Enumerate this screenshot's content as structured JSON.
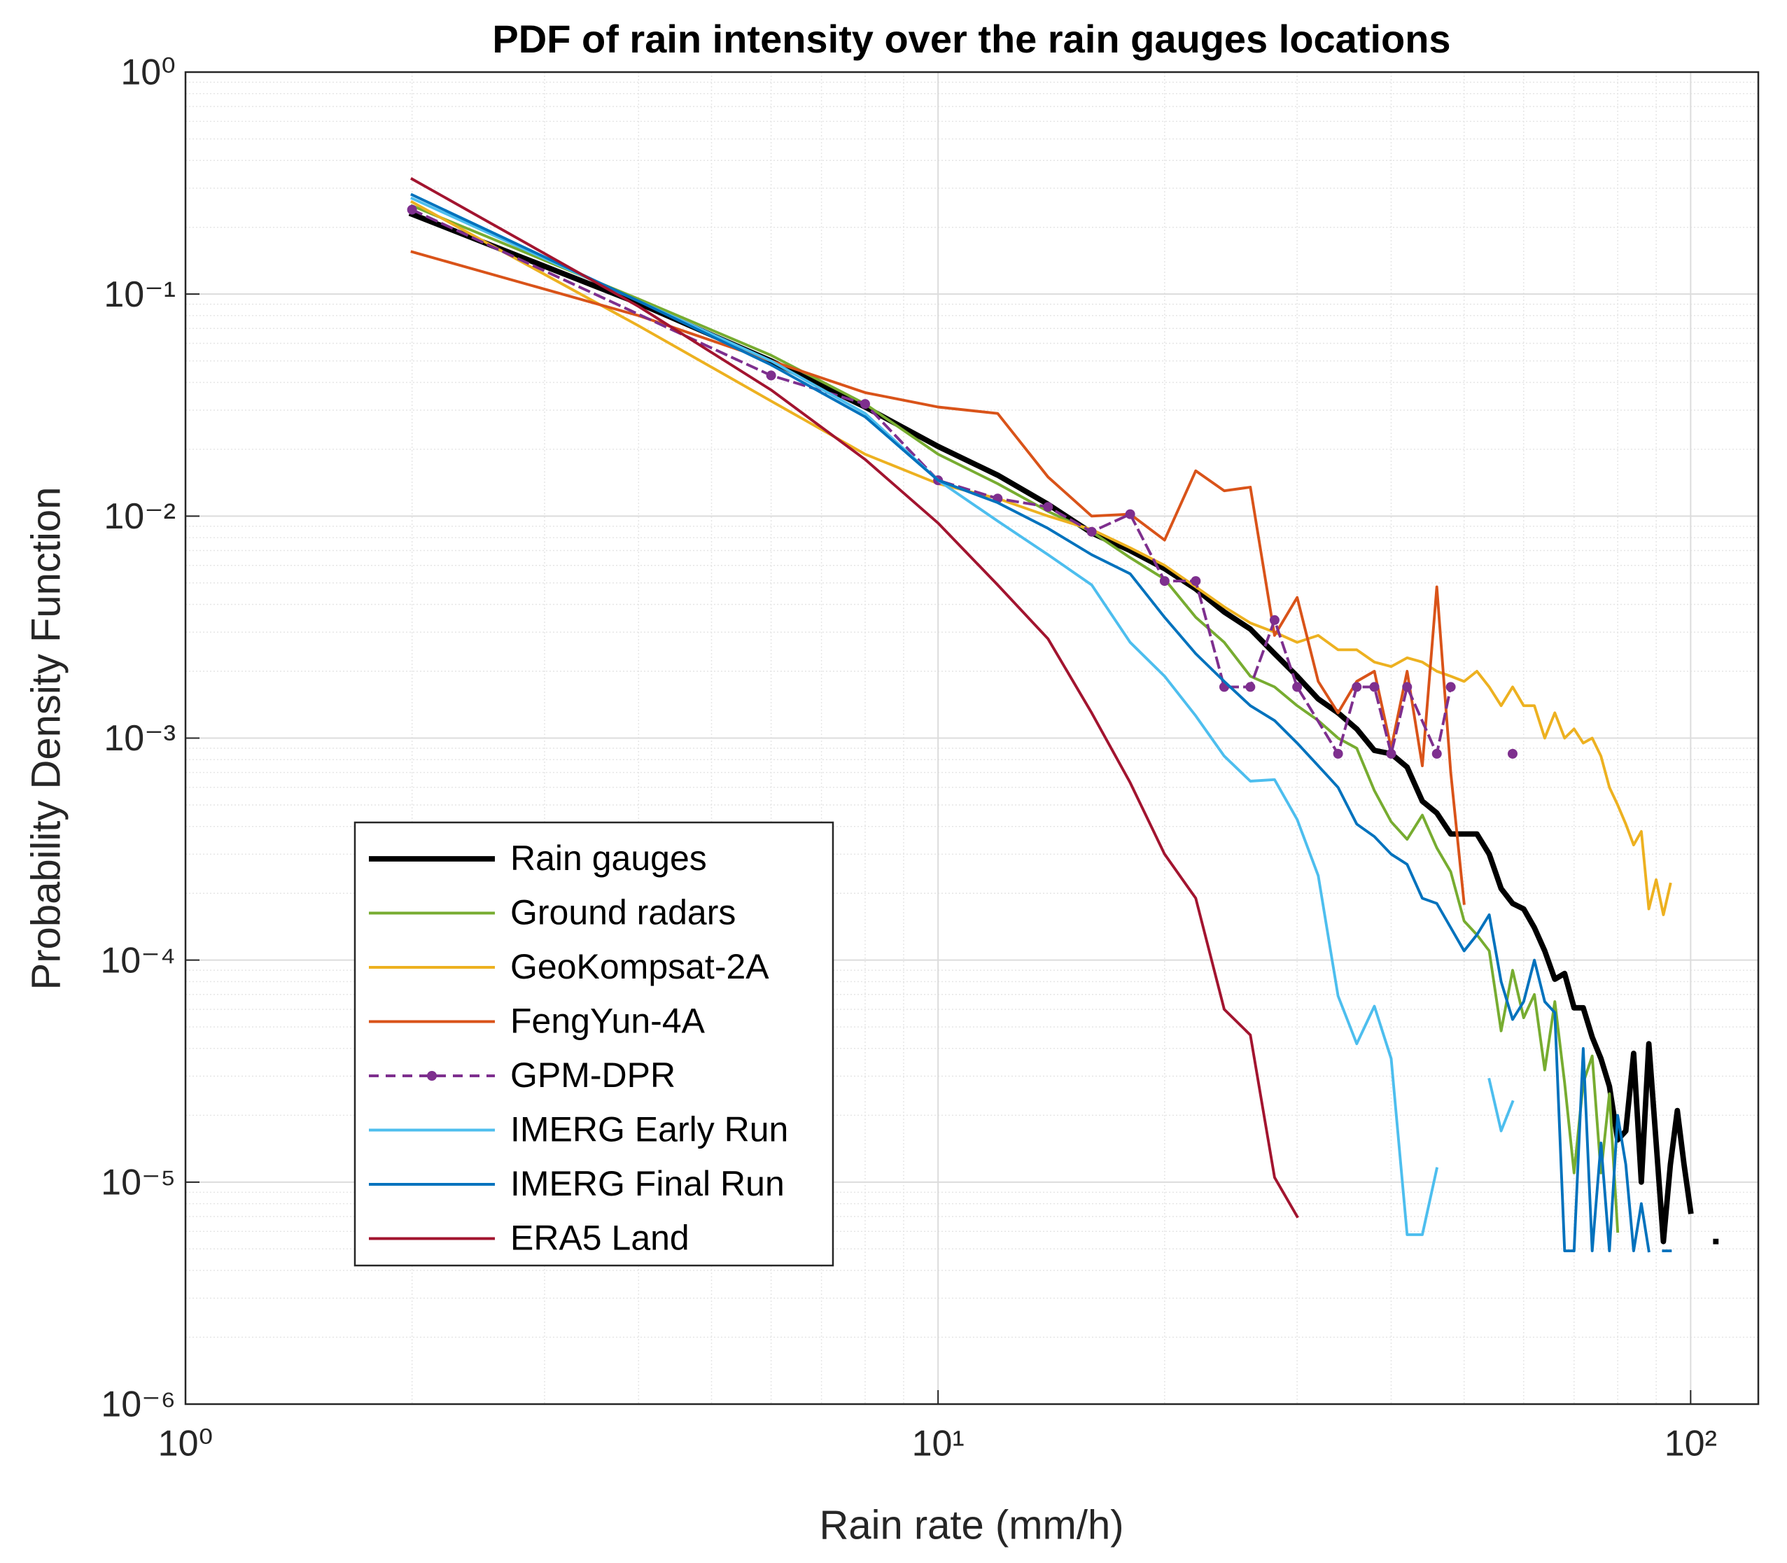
{
  "chart_data": {
    "type": "line",
    "title": "PDF of rain intensity over the rain gauges locations",
    "x_label": "Rain rate (mm/h)",
    "y_label": "Probability Density Function",
    "xscale": "log",
    "yscale": "log",
    "grid": true,
    "minor_grid": true,
    "legend": "southwest",
    "xlim": [
      1,
      123
    ],
    "ylim": [
      1e-06,
      1
    ],
    "xticks": [
      {
        "value": 1,
        "label": "10⁰"
      },
      {
        "value": 10,
        "label": "10¹"
      },
      {
        "value": 100,
        "label": "10²"
      }
    ],
    "yticks": [
      {
        "value": 1e-06,
        "label": "10⁻⁶"
      },
      {
        "value": 1e-05,
        "label": "10⁻⁵"
      },
      {
        "value": 0.0001,
        "label": "10⁻⁴"
      },
      {
        "value": 0.001,
        "label": "10⁻³"
      },
      {
        "value": 0.01,
        "label": "10⁻²"
      },
      {
        "value": 0.1,
        "label": "10⁻¹"
      },
      {
        "value": 1,
        "label": "10⁰"
      }
    ],
    "series": [
      {
        "name": "Rain gauges",
        "color": "#000000",
        "linewidth": 3,
        "x": [
          2,
          4,
          6,
          8,
          10,
          12,
          14,
          16,
          18,
          20,
          22,
          24,
          26,
          28,
          30,
          32,
          34,
          36,
          38,
          40,
          42,
          44,
          46,
          48,
          50,
          52,
          54,
          56,
          58,
          60,
          62,
          64,
          66,
          68,
          70,
          72,
          74,
          76,
          78,
          80,
          82,
          84,
          86,
          88,
          90,
          92,
          94,
          96,
          98,
          100,
          102,
          104,
          106,
          108
        ],
        "values": [
          0.229,
          0.091,
          0.05,
          0.031,
          0.0206,
          0.0153,
          0.0113,
          0.0084,
          0.007,
          0.0058,
          0.0047,
          0.0037,
          0.0031,
          0.0024,
          0.0019,
          0.0015,
          0.0013,
          0.0011,
          0.00088,
          0.00085,
          0.00074,
          0.00052,
          0.00046,
          0.00037,
          0.00037,
          0.00037,
          0.0003,
          0.00021,
          0.00018,
          0.00017,
          0.00014,
          0.00011,
          8.2e-05,
          8.7e-05,
          6.1e-05,
          6.1e-05,
          4.5e-05,
          3.6e-05,
          2.7e-05,
          1.55e-05,
          1.7e-05,
          3.8e-05,
          1e-05,
          4.2e-05,
          1.5e-05,
          5.4e-06,
          1.2e-05,
          2.1e-05,
          1.2e-05,
          7.4e-06,
          null,
          null,
          null,
          5.4e-06
        ]
      },
      {
        "name": "Ground radars",
        "color": "#77ac30",
        "x": [
          2,
          4,
          6,
          8,
          10,
          12,
          14,
          16,
          18,
          20,
          22,
          24,
          26,
          28,
          30,
          32,
          34,
          36,
          38,
          40,
          42,
          44,
          46,
          48,
          50,
          52,
          54,
          56,
          58,
          60,
          62,
          64,
          66,
          68,
          70,
          72,
          74,
          76,
          78,
          80
        ],
        "values": [
          0.25,
          0.095,
          0.053,
          0.032,
          0.019,
          0.014,
          0.0105,
          0.0085,
          0.0065,
          0.0052,
          0.0035,
          0.0027,
          0.0019,
          0.0017,
          0.0014,
          0.0012,
          0.001,
          0.0009,
          0.00058,
          0.00042,
          0.00035,
          0.00045,
          0.00032,
          0.00025,
          0.00015,
          0.00013,
          0.00011,
          4.8e-05,
          9e-05,
          5.5e-05,
          7e-05,
          3.2e-05,
          6.5e-05,
          2.8e-05,
          1.1e-05,
          2.8e-05,
          3.7e-05,
          1.1e-05,
          2.5e-05,
          6e-06
        ]
      },
      {
        "name": "GeoKompsat-2A",
        "color": "#edb120",
        "x": [
          2,
          4,
          6,
          8,
          10,
          12,
          14,
          16,
          18,
          20,
          22,
          24,
          26,
          28,
          30,
          32,
          34,
          36,
          38,
          40,
          42,
          44,
          46,
          48,
          50,
          52,
          54,
          56,
          58,
          60,
          62,
          64,
          66,
          68,
          70,
          72,
          74,
          76,
          78,
          80,
          82,
          84,
          86,
          88,
          90,
          92,
          94
        ],
        "values": [
          0.26,
          0.072,
          0.033,
          0.019,
          0.014,
          0.012,
          0.01,
          0.0087,
          0.0072,
          0.006,
          0.0048,
          0.0039,
          0.0033,
          0.003,
          0.0027,
          0.0029,
          0.0025,
          0.0025,
          0.0022,
          0.0021,
          0.0023,
          0.0022,
          0.002,
          0.0019,
          0.0018,
          0.002,
          0.0017,
          0.0014,
          0.0017,
          0.0014,
          0.0014,
          0.001,
          0.0013,
          0.001,
          0.0011,
          0.00095,
          0.001,
          0.00083,
          0.0006,
          0.0005,
          0.00041,
          0.00033,
          0.00038,
          0.00017,
          0.00023,
          0.00016,
          0.00022
        ]
      },
      {
        "name": "FengYun-4A",
        "color": "#d95319",
        "x": [
          2,
          4,
          6,
          8,
          10,
          12,
          14,
          16,
          18,
          20,
          22,
          24,
          26,
          28,
          30,
          32,
          34,
          36,
          38,
          40,
          42,
          44,
          46,
          48,
          50
        ],
        "values": [
          0.155,
          0.08,
          0.05,
          0.036,
          0.031,
          0.029,
          0.015,
          0.01,
          0.0102,
          0.0078,
          0.016,
          0.013,
          0.0135,
          0.0029,
          0.0043,
          0.0018,
          0.0013,
          0.0018,
          0.002,
          0.0009,
          0.002,
          0.00075,
          0.0048,
          0.0007,
          0.00018
        ]
      },
      {
        "name": "GPM-DPR",
        "color": "#7e2f8e",
        "linestyle": "dashed",
        "marker": "circle",
        "x": [
          2,
          6,
          8,
          10,
          12,
          14,
          16,
          18,
          20,
          22,
          24,
          26,
          28,
          30,
          34,
          36,
          38,
          40,
          42,
          46,
          48,
          50,
          58
        ],
        "values": [
          0.24,
          0.043,
          0.032,
          0.0145,
          0.012,
          0.011,
          0.0085,
          0.0102,
          0.0051,
          0.0051,
          0.0017,
          0.0017,
          0.0034,
          0.0017,
          0.00085,
          0.0017,
          0.0017,
          0.00085,
          0.0017,
          0.00085,
          0.0017,
          null,
          0.00085
        ]
      },
      {
        "name": "IMERG Early Run",
        "color": "#4dbeee",
        "x": [
          2,
          4,
          6,
          8,
          10,
          12,
          14,
          16,
          18,
          20,
          22,
          24,
          26,
          28,
          30,
          32,
          34,
          36,
          38,
          40,
          42,
          44,
          46,
          48,
          50,
          52,
          54,
          56,
          58
        ],
        "values": [
          0.27,
          0.093,
          0.05,
          0.029,
          0.0145,
          0.0095,
          0.0067,
          0.0049,
          0.0027,
          0.0019,
          0.00126,
          0.00083,
          0.00064,
          0.00065,
          0.00043,
          0.00024,
          6.9e-05,
          4.2e-05,
          6.2e-05,
          3.6e-05,
          5.8e-06,
          5.8e-06,
          1.15e-05,
          null,
          null,
          null,
          2.9e-05,
          1.7e-05,
          2.3e-05
        ]
      },
      {
        "name": "IMERG Final Run",
        "color": "#0072bd",
        "x": [
          2,
          4,
          6,
          8,
          10,
          12,
          14,
          16,
          18,
          20,
          22,
          24,
          26,
          28,
          30,
          32,
          34,
          36,
          38,
          40,
          42,
          44,
          46,
          48,
          50,
          52,
          54,
          56,
          58,
          60,
          62,
          64,
          66,
          68,
          70,
          72,
          74,
          76,
          78,
          80,
          82,
          84,
          86,
          88,
          90,
          92,
          94
        ],
        "values": [
          0.28,
          0.093,
          0.048,
          0.028,
          0.0145,
          0.0115,
          0.0088,
          0.0067,
          0.0055,
          0.0035,
          0.0024,
          0.0018,
          0.0014,
          0.0012,
          0.00095,
          0.00075,
          0.0006,
          0.00041,
          0.00036,
          0.0003,
          0.00027,
          0.00019,
          0.00018,
          0.00014,
          0.00011,
          0.00013,
          0.00016,
          8e-05,
          5.4e-05,
          6.5e-05,
          0.0001,
          6.5e-05,
          5.8e-05,
          4.9e-06,
          4.9e-06,
          4e-05,
          4.9e-06,
          1.5e-05,
          4.9e-06,
          2e-05,
          1.2e-05,
          4.9e-06,
          8e-06,
          4.9e-06,
          null,
          4.9e-06,
          4.9e-06
        ]
      },
      {
        "name": "ERA5 Land",
        "color": "#a2142f",
        "x": [
          2,
          4,
          6,
          8,
          10,
          12,
          14,
          16,
          18,
          20,
          22,
          24,
          26,
          28,
          30
        ],
        "values": [
          0.33,
          0.088,
          0.037,
          0.018,
          0.0093,
          0.0049,
          0.0028,
          0.0013,
          0.00063,
          0.0003,
          0.00019,
          6e-05,
          4.6e-05,
          1.05e-05,
          7e-06
        ]
      }
    ]
  }
}
